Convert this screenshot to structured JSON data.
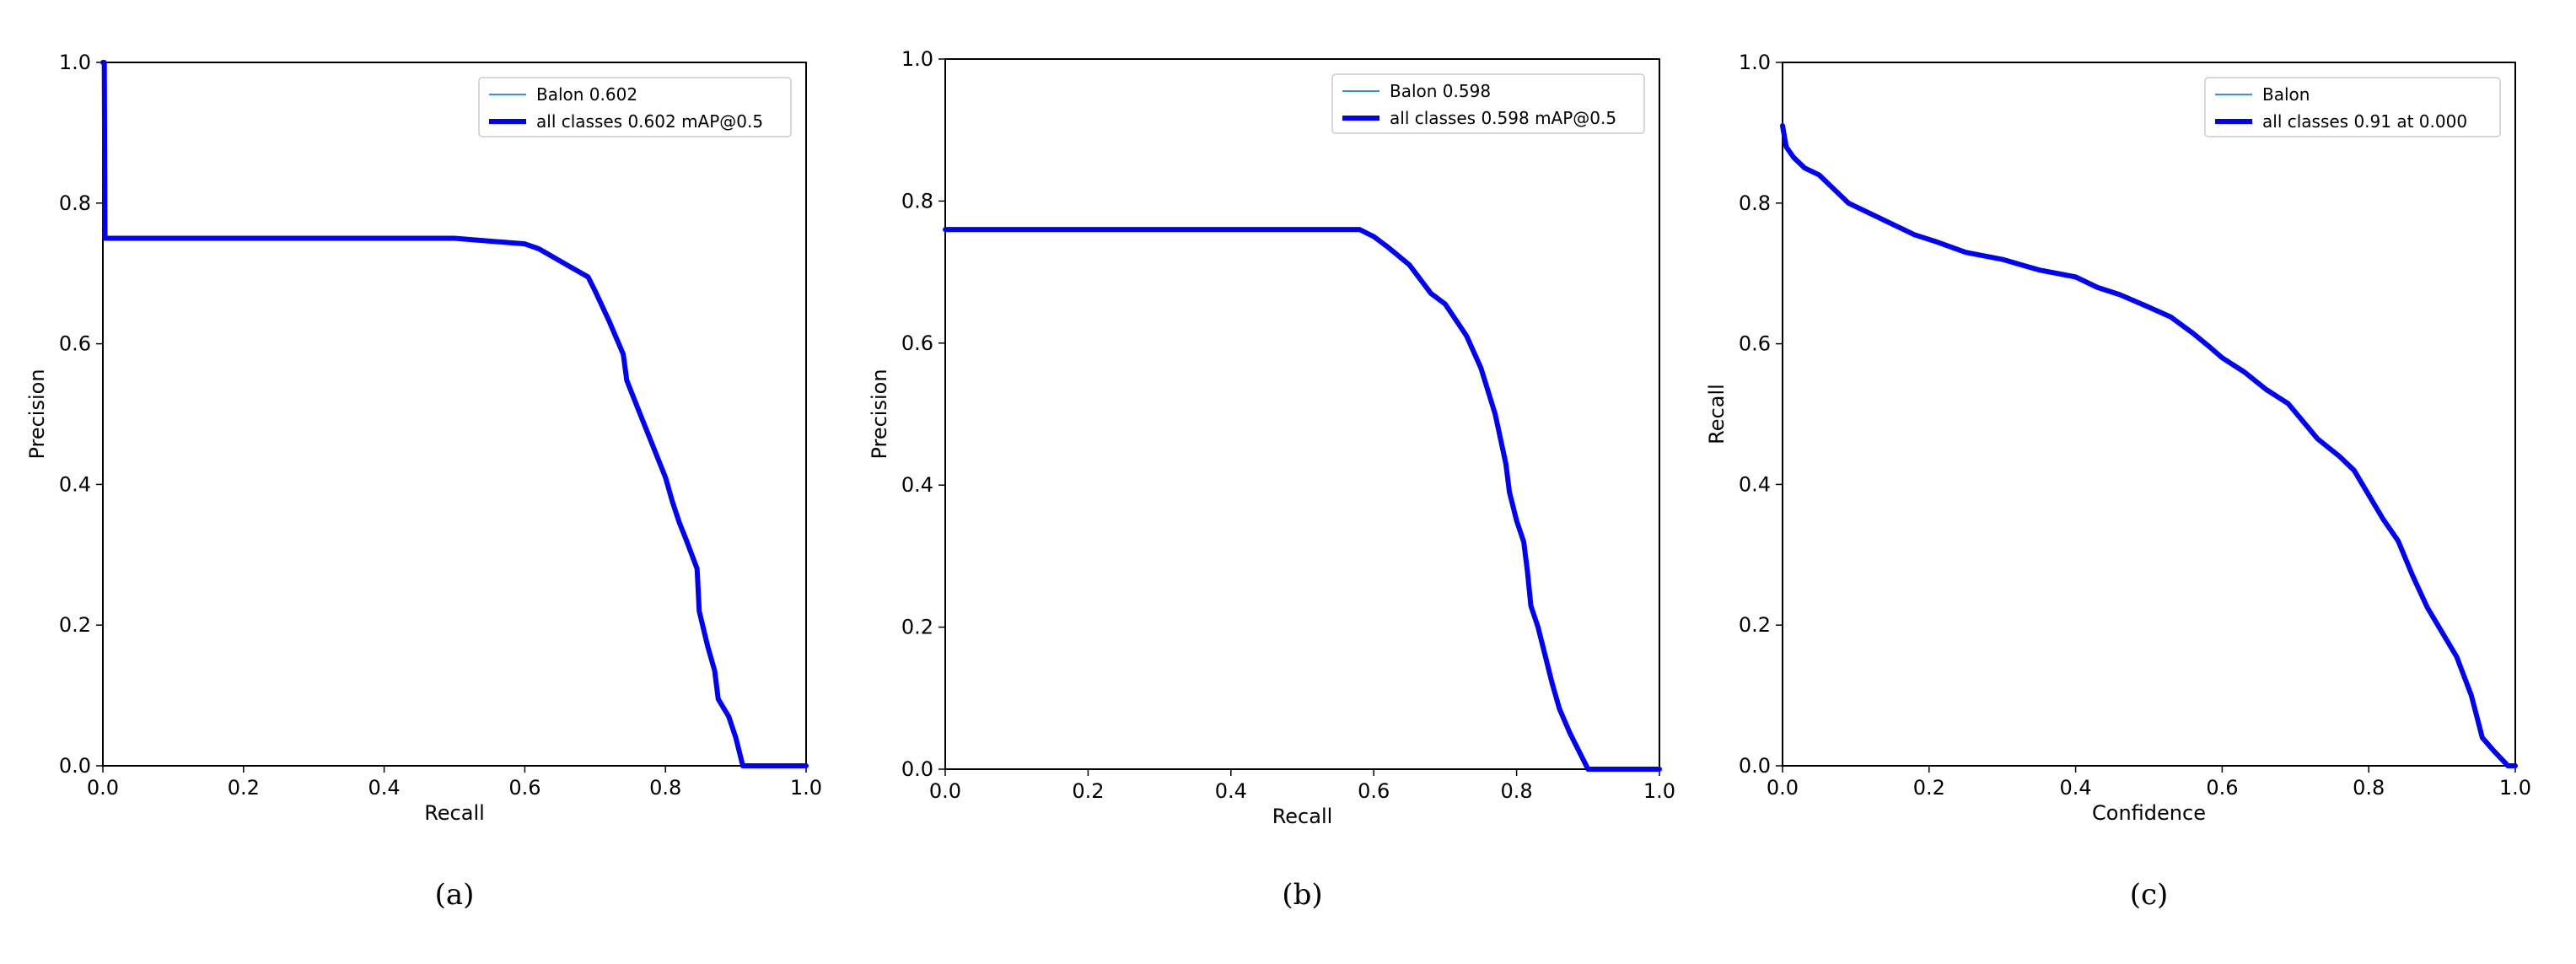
{
  "colors": {
    "thin_series": "#2c98d8",
    "thick_series": "#0000ff",
    "axes": "#000000"
  },
  "chart_data": [
    {
      "type": "line",
      "caption": "(a)",
      "xlabel": "Recall",
      "ylabel": "Precision",
      "xlim": [
        0,
        1
      ],
      "ylim": [
        0,
        1
      ],
      "xticks": [
        "0.0",
        "0.2",
        "0.4",
        "0.6",
        "0.8",
        "1.0"
      ],
      "yticks": [
        "0.0",
        "0.2",
        "0.4",
        "0.6",
        "0.8",
        "1.0"
      ],
      "grid": false,
      "legend_position": "top-right",
      "series": [
        {
          "name": "Balon 0.602",
          "style": "thin",
          "points": [
            [
              0.0,
              1.0
            ],
            [
              0.002,
              1.0
            ],
            [
              0.003,
              0.75
            ],
            [
              0.5,
              0.75
            ],
            [
              0.55,
              0.746
            ],
            [
              0.6,
              0.742
            ],
            [
              0.62,
              0.735
            ],
            [
              0.66,
              0.712
            ],
            [
              0.69,
              0.695
            ],
            [
              0.7,
              0.675
            ],
            [
              0.72,
              0.632
            ],
            [
              0.74,
              0.585
            ],
            [
              0.745,
              0.548
            ],
            [
              0.76,
              0.51
            ],
            [
              0.78,
              0.46
            ],
            [
              0.8,
              0.41
            ],
            [
              0.81,
              0.375
            ],
            [
              0.82,
              0.345
            ],
            [
              0.83,
              0.32
            ],
            [
              0.845,
              0.28
            ],
            [
              0.848,
              0.22
            ],
            [
              0.86,
              0.17
            ],
            [
              0.87,
              0.135
            ],
            [
              0.875,
              0.095
            ],
            [
              0.89,
              0.07
            ],
            [
              0.9,
              0.04
            ],
            [
              0.91,
              0.0
            ],
            [
              1.0,
              0.0
            ]
          ]
        },
        {
          "name": "all classes 0.602 mAP@0.5",
          "style": "thick",
          "points": [
            [
              0.0,
              1.0
            ],
            [
              0.002,
              1.0
            ],
            [
              0.003,
              0.75
            ],
            [
              0.5,
              0.75
            ],
            [
              0.55,
              0.746
            ],
            [
              0.6,
              0.742
            ],
            [
              0.62,
              0.735
            ],
            [
              0.66,
              0.712
            ],
            [
              0.69,
              0.695
            ],
            [
              0.7,
              0.675
            ],
            [
              0.72,
              0.632
            ],
            [
              0.74,
              0.585
            ],
            [
              0.745,
              0.548
            ],
            [
              0.76,
              0.51
            ],
            [
              0.78,
              0.46
            ],
            [
              0.8,
              0.41
            ],
            [
              0.81,
              0.375
            ],
            [
              0.82,
              0.345
            ],
            [
              0.83,
              0.32
            ],
            [
              0.845,
              0.28
            ],
            [
              0.848,
              0.22
            ],
            [
              0.86,
              0.17
            ],
            [
              0.87,
              0.135
            ],
            [
              0.875,
              0.095
            ],
            [
              0.89,
              0.07
            ],
            [
              0.9,
              0.04
            ],
            [
              0.91,
              0.0
            ],
            [
              1.0,
              0.0
            ]
          ]
        }
      ]
    },
    {
      "type": "line",
      "caption": "(b)",
      "xlabel": "Recall",
      "ylabel": "Precision",
      "xlim": [
        0,
        1
      ],
      "ylim": [
        0,
        1
      ],
      "xticks": [
        "0.0",
        "0.2",
        "0.4",
        "0.6",
        "0.8",
        "1.0"
      ],
      "yticks": [
        "0.0",
        "0.2",
        "0.4",
        "0.6",
        "0.8",
        "1.0"
      ],
      "grid": false,
      "legend_position": "top-right",
      "series": [
        {
          "name": "Balon 0.598",
          "style": "thin",
          "points": [
            [
              0.0,
              0.76
            ],
            [
              0.58,
              0.76
            ],
            [
              0.6,
              0.75
            ],
            [
              0.62,
              0.735
            ],
            [
              0.65,
              0.71
            ],
            [
              0.68,
              0.67
            ],
            [
              0.7,
              0.655
            ],
            [
              0.73,
              0.61
            ],
            [
              0.75,
              0.565
            ],
            [
              0.77,
              0.5
            ],
            [
              0.785,
              0.43
            ],
            [
              0.79,
              0.39
            ],
            [
              0.8,
              0.35
            ],
            [
              0.81,
              0.32
            ],
            [
              0.815,
              0.28
            ],
            [
              0.82,
              0.23
            ],
            [
              0.83,
              0.2
            ],
            [
              0.84,
              0.16
            ],
            [
              0.85,
              0.12
            ],
            [
              0.86,
              0.085
            ],
            [
              0.875,
              0.05
            ],
            [
              0.885,
              0.03
            ],
            [
              0.9,
              0.0
            ],
            [
              1.0,
              0.0
            ]
          ]
        },
        {
          "name": "all classes 0.598 mAP@0.5",
          "style": "thick",
          "points": [
            [
              0.0,
              0.76
            ],
            [
              0.58,
              0.76
            ],
            [
              0.6,
              0.75
            ],
            [
              0.62,
              0.735
            ],
            [
              0.65,
              0.71
            ],
            [
              0.68,
              0.67
            ],
            [
              0.7,
              0.655
            ],
            [
              0.73,
              0.61
            ],
            [
              0.75,
              0.565
            ],
            [
              0.77,
              0.5
            ],
            [
              0.785,
              0.43
            ],
            [
              0.79,
              0.39
            ],
            [
              0.8,
              0.35
            ],
            [
              0.81,
              0.32
            ],
            [
              0.815,
              0.28
            ],
            [
              0.82,
              0.23
            ],
            [
              0.83,
              0.2
            ],
            [
              0.84,
              0.16
            ],
            [
              0.85,
              0.12
            ],
            [
              0.86,
              0.085
            ],
            [
              0.875,
              0.05
            ],
            [
              0.885,
              0.03
            ],
            [
              0.9,
              0.0
            ],
            [
              1.0,
              0.0
            ]
          ]
        }
      ]
    },
    {
      "type": "line",
      "caption": "(c)",
      "xlabel": "Confidence",
      "ylabel": "Recall",
      "xlim": [
        0,
        1
      ],
      "ylim": [
        0,
        1
      ],
      "xticks": [
        "0.0",
        "0.2",
        "0.4",
        "0.6",
        "0.8",
        "1.0"
      ],
      "yticks": [
        "0.0",
        "0.2",
        "0.4",
        "0.6",
        "0.8",
        "1.0"
      ],
      "grid": false,
      "legend_position": "top-right",
      "series": [
        {
          "name": "Balon",
          "style": "thin",
          "points": [
            [
              0.0,
              0.91
            ],
            [
              0.005,
              0.88
            ],
            [
              0.015,
              0.865
            ],
            [
              0.03,
              0.85
            ],
            [
              0.05,
              0.84
            ],
            [
              0.07,
              0.82
            ],
            [
              0.09,
              0.8
            ],
            [
              0.12,
              0.785
            ],
            [
              0.15,
              0.77
            ],
            [
              0.18,
              0.755
            ],
            [
              0.21,
              0.745
            ],
            [
              0.25,
              0.73
            ],
            [
              0.3,
              0.72
            ],
            [
              0.35,
              0.705
            ],
            [
              0.4,
              0.695
            ],
            [
              0.43,
              0.68
            ],
            [
              0.46,
              0.67
            ],
            [
              0.5,
              0.652
            ],
            [
              0.53,
              0.638
            ],
            [
              0.56,
              0.615
            ],
            [
              0.58,
              0.598
            ],
            [
              0.6,
              0.58
            ],
            [
              0.63,
              0.56
            ],
            [
              0.66,
              0.535
            ],
            [
              0.69,
              0.515
            ],
            [
              0.71,
              0.49
            ],
            [
              0.73,
              0.465
            ],
            [
              0.76,
              0.44
            ],
            [
              0.78,
              0.42
            ],
            [
              0.8,
              0.385
            ],
            [
              0.82,
              0.35
            ],
            [
              0.84,
              0.32
            ],
            [
              0.86,
              0.27
            ],
            [
              0.88,
              0.225
            ],
            [
              0.9,
              0.19
            ],
            [
              0.92,
              0.155
            ],
            [
              0.94,
              0.1
            ],
            [
              0.955,
              0.04
            ],
            [
              0.97,
              0.022
            ],
            [
              0.99,
              0.0
            ],
            [
              1.0,
              0.0
            ]
          ]
        },
        {
          "name": "all classes 0.91 at 0.000",
          "style": "thick",
          "points": [
            [
              0.0,
              0.91
            ],
            [
              0.005,
              0.88
            ],
            [
              0.015,
              0.865
            ],
            [
              0.03,
              0.85
            ],
            [
              0.05,
              0.84
            ],
            [
              0.07,
              0.82
            ],
            [
              0.09,
              0.8
            ],
            [
              0.12,
              0.785
            ],
            [
              0.15,
              0.77
            ],
            [
              0.18,
              0.755
            ],
            [
              0.21,
              0.745
            ],
            [
              0.25,
              0.73
            ],
            [
              0.3,
              0.72
            ],
            [
              0.35,
              0.705
            ],
            [
              0.4,
              0.695
            ],
            [
              0.43,
              0.68
            ],
            [
              0.46,
              0.67
            ],
            [
              0.5,
              0.652
            ],
            [
              0.53,
              0.638
            ],
            [
              0.56,
              0.615
            ],
            [
              0.58,
              0.598
            ],
            [
              0.6,
              0.58
            ],
            [
              0.63,
              0.56
            ],
            [
              0.66,
              0.535
            ],
            [
              0.69,
              0.515
            ],
            [
              0.71,
              0.49
            ],
            [
              0.73,
              0.465
            ],
            [
              0.76,
              0.44
            ],
            [
              0.78,
              0.42
            ],
            [
              0.8,
              0.385
            ],
            [
              0.82,
              0.35
            ],
            [
              0.84,
              0.32
            ],
            [
              0.86,
              0.27
            ],
            [
              0.88,
              0.225
            ],
            [
              0.9,
              0.19
            ],
            [
              0.92,
              0.155
            ],
            [
              0.94,
              0.1
            ],
            [
              0.955,
              0.04
            ],
            [
              0.97,
              0.022
            ],
            [
              0.99,
              0.0
            ],
            [
              1.0,
              0.0
            ]
          ]
        }
      ]
    }
  ]
}
